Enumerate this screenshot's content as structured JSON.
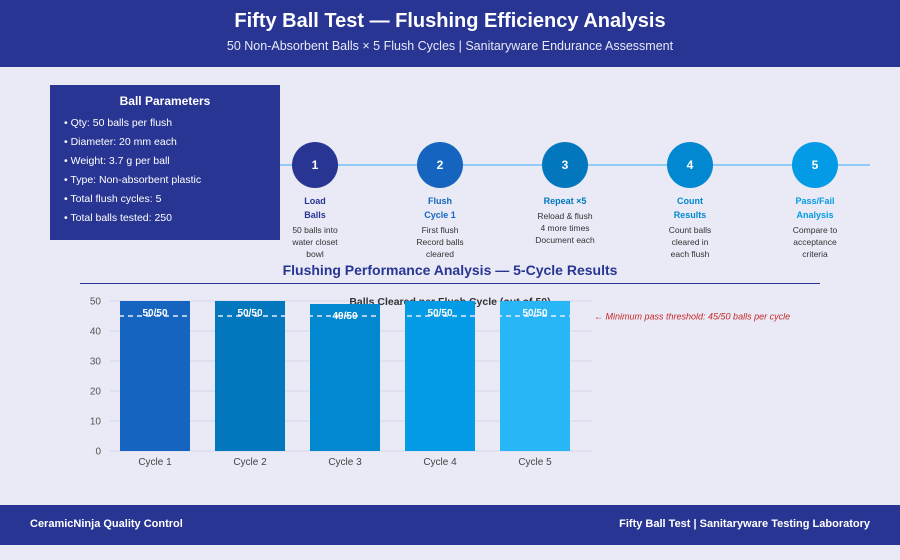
{
  "header": {
    "title": "Fifty Ball Test — Flushing Efficiency Analysis",
    "subtitle": "50 Non-Absorbent Balls × 5 Flush Cycles | Sanitaryware Endurance Assessment"
  },
  "params": {
    "title": "Ball Parameters",
    "items": [
      "Qty: 50 balls per flush",
      "Diameter: 20 mm each",
      "Weight: 3.7 g per ball",
      "Type: Non-absorbent plastic",
      "Total flush cycles: 5",
      "Total balls tested: 250"
    ]
  },
  "steps": [
    {
      "num": "1",
      "title": "Load\nBalls",
      "desc": "50 balls into\nwater closet\nbowl",
      "color": "#283593"
    },
    {
      "num": "2",
      "title": "Flush\nCycle 1",
      "desc": "First flush\nRecord balls\ncleared",
      "color": "#1565c0"
    },
    {
      "num": "3",
      "title": "Repeat ×5",
      "desc": "Reload & flush\n4 more times\nDocument each",
      "color": "#0277bd"
    },
    {
      "num": "4",
      "title": "Count\nResults",
      "desc": "Count balls\ncleared in\neach flush",
      "color": "#0288d1"
    },
    {
      "num": "5",
      "title": "Pass/Fail\nAnalysis",
      "desc": "Compare to\nacceptance\ncriteria",
      "color": "#039be5"
    }
  ],
  "chart_section_title": "Flushing Performance Analysis — 5-Cycle Results",
  "chart_data": {
    "type": "bar",
    "title": "Balls Cleared per Flush Cycle (out of 50)",
    "categories": [
      "Cycle 1",
      "Cycle 2",
      "Cycle 3",
      "Cycle 4",
      "Cycle 5"
    ],
    "values": [
      50,
      50,
      49,
      50,
      50
    ],
    "data_labels": [
      "50/50",
      "50/50",
      "49/50",
      "50/50",
      "50/50"
    ],
    "bar_colors": [
      "#1565c0",
      "#0277bd",
      "#0288d1",
      "#039be5",
      "#29b6f6"
    ],
    "ylim": [
      0,
      50
    ],
    "yticks": [
      "0",
      "10",
      "20",
      "30",
      "40",
      "50"
    ],
    "threshold": 45,
    "threshold_label": "← Minimum pass threshold: 45/50 balls per cycle",
    "threshold_color": "#c62828",
    "grid": true
  },
  "footer": {
    "left": "CeramicNinja Quality Control",
    "right": "Fifty Ball Test | Sanitaryware Testing Laboratory"
  }
}
